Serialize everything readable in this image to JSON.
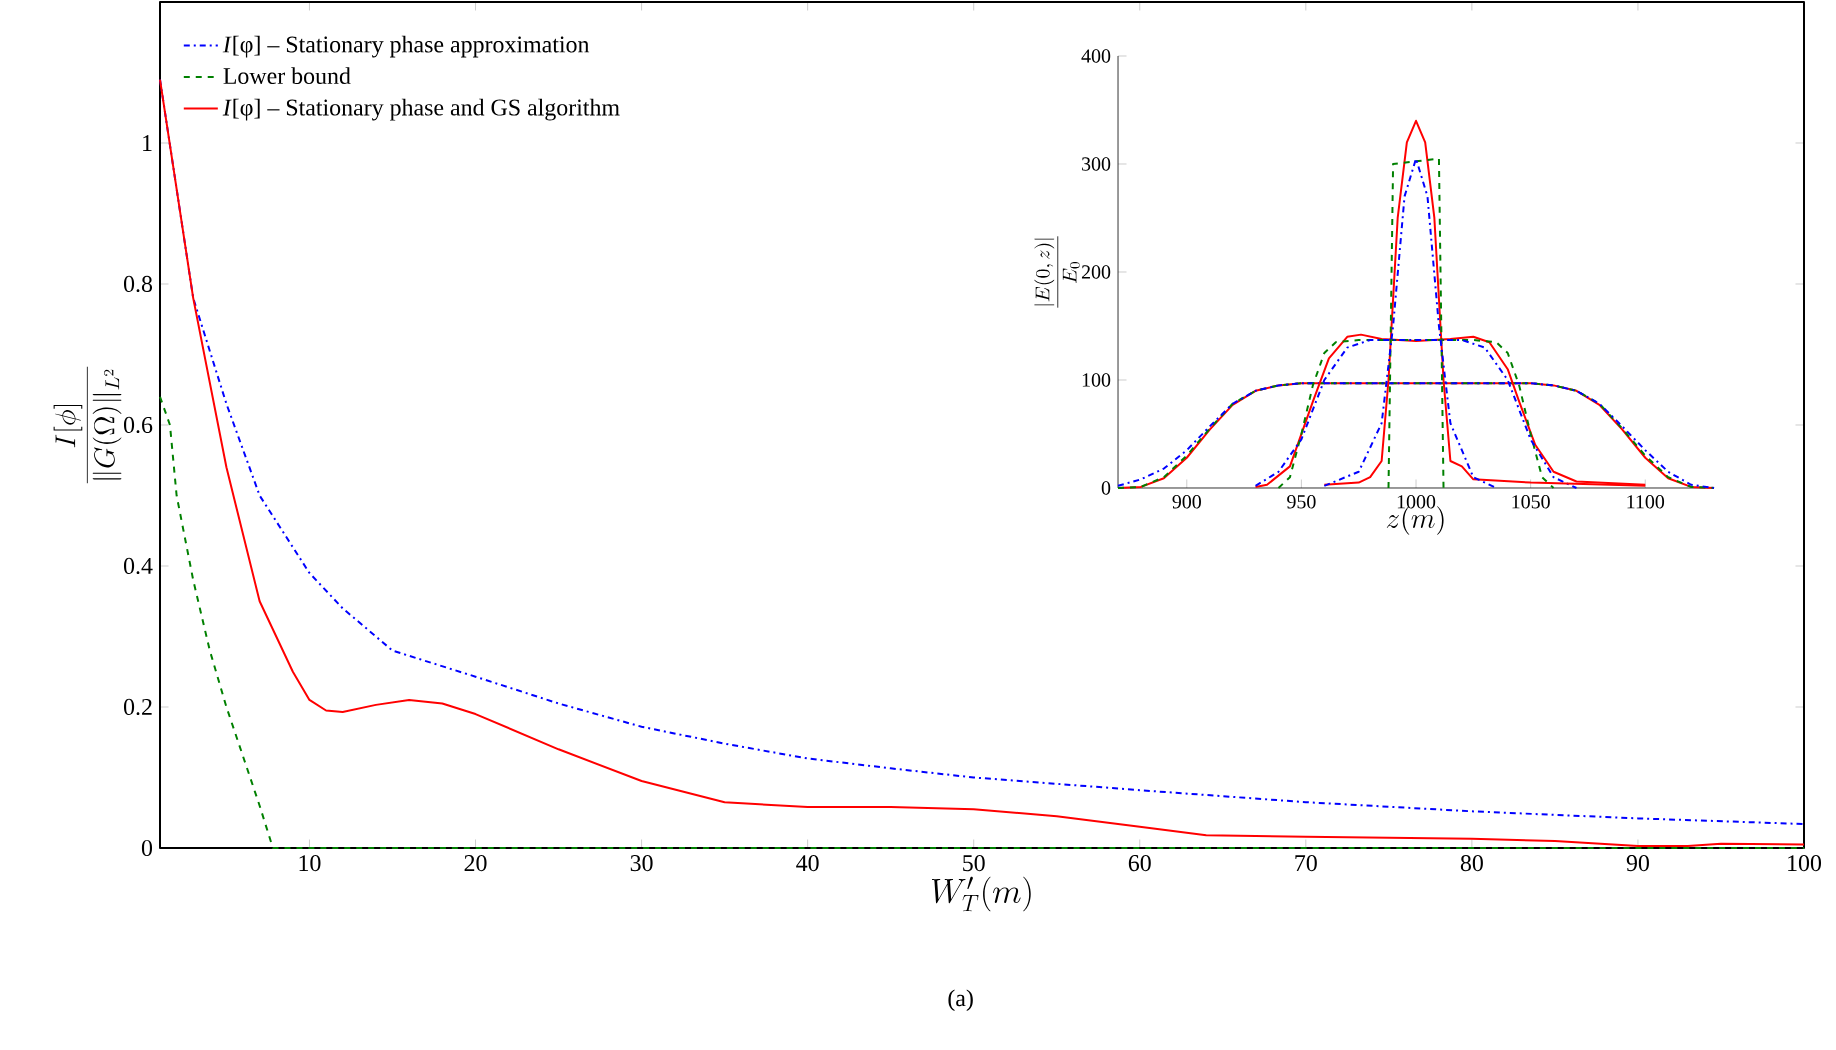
{
  "chart_data": [
    {
      "type": "line",
      "xlabel": "W'_T(m)",
      "ylabel": "\\frac{I[\\phi]}{\\|G(\\Omega)\\|_{L^2}}",
      "xlim": [
        1,
        100
      ],
      "ylim": [
        0,
        1.2
      ],
      "xticks": [
        10,
        20,
        30,
        40,
        50,
        60,
        70,
        80,
        90,
        100
      ],
      "yticks": [
        0,
        0.2,
        0.4,
        0.6,
        0.8,
        1
      ],
      "legend": "top left",
      "annotations": [
        "(a)"
      ],
      "series": [
        {
          "name": "*I*[φ] – Stationary phase approximation",
          "color": "#0000ff",
          "line_style": "dashdot",
          "x": [
            1,
            3,
            5,
            7,
            10,
            12,
            15,
            20,
            25,
            30,
            35,
            40,
            45,
            50,
            60,
            70,
            80,
            90,
            100
          ],
          "values": [
            1.09,
            0.78,
            0.63,
            0.5,
            0.39,
            0.34,
            0.28,
            0.243,
            0.205,
            0.172,
            0.148,
            0.127,
            0.113,
            0.1,
            0.082,
            0.065,
            0.052,
            0.042,
            0.034
          ]
        },
        {
          "name": "Lower bound",
          "color": "#008000",
          "line_style": "dashed",
          "x": [
            1,
            1.6,
            2,
            3,
            4,
            5,
            6,
            7,
            7.8,
            10,
            20,
            40,
            60,
            80,
            100
          ],
          "values": [
            0.64,
            0.6,
            0.5,
            0.38,
            0.28,
            0.2,
            0.13,
            0.06,
            0,
            0,
            0,
            0,
            0,
            0,
            0
          ]
        },
        {
          "name": "*I*[φ] – Stationary phase and GS algorithm",
          "color": "#ff0000",
          "line_style": "solid",
          "x": [
            1,
            3,
            5,
            7,
            9,
            10,
            11,
            12,
            14,
            16,
            18,
            20,
            25,
            30,
            35,
            40,
            45,
            50,
            55,
            60,
            64,
            70,
            80,
            85,
            90,
            93,
            95,
            100
          ],
          "values": [
            1.09,
            0.78,
            0.54,
            0.35,
            0.25,
            0.21,
            0.195,
            0.193,
            0.203,
            0.21,
            0.205,
            0.19,
            0.14,
            0.095,
            0.065,
            0.058,
            0.058,
            0.055,
            0.045,
            0.03,
            0.018,
            0.016,
            0.013,
            0.01,
            0.003,
            0.003,
            0.006,
            0.005
          ]
        }
      ]
    },
    {
      "type": "line",
      "xlabel": "z(m)",
      "ylabel": "\\frac{|E(0,z)|}{E_0}",
      "xlim": [
        870,
        1130
      ],
      "ylim": [
        0,
        400
      ],
      "xticks": [
        900,
        950,
        1000,
        1050,
        1100
      ],
      "yticks": [
        0,
        100,
        200,
        300,
        400
      ],
      "series": [
        {
          "color": "#ff0000",
          "line_style": "solid",
          "x": [
            870,
            880,
            890,
            900,
            910,
            920,
            930,
            940,
            950,
            1050,
            1060,
            1070,
            1080,
            1090,
            1100,
            1110,
            1120,
            1130
          ],
          "values": [
            0,
            1,
            9,
            28,
            54,
            77,
            90,
            95,
            97,
            97,
            95,
            90,
            77,
            54,
            28,
            9,
            1,
            0
          ]
        },
        {
          "color": "#008000",
          "line_style": "dashed",
          "x": [
            870,
            880,
            890,
            900,
            910,
            920,
            930,
            940,
            950,
            1050,
            1060,
            1070,
            1080,
            1090,
            1100,
            1110,
            1120,
            1130
          ],
          "values": [
            0,
            1,
            10,
            30,
            55,
            78,
            90,
            95,
            97,
            97,
            95,
            90,
            78,
            55,
            30,
            10,
            1,
            0
          ]
        },
        {
          "color": "#0000ff",
          "line_style": "dashdot",
          "x": [
            870,
            880,
            890,
            900,
            910,
            920,
            930,
            940,
            950,
            1050,
            1060,
            1070,
            1080,
            1090,
            1100,
            1110,
            1120,
            1130
          ],
          "values": [
            2,
            8,
            18,
            35,
            57,
            78,
            90,
            95,
            97,
            97,
            95,
            90,
            78,
            57,
            35,
            15,
            3,
            0
          ]
        },
        {
          "color": "#ff0000",
          "line_style": "solid",
          "x": [
            930,
            935,
            945,
            955,
            962,
            970,
            976,
            985,
            1000,
            1015,
            1025,
            1032,
            1040,
            1045,
            1052,
            1060,
            1070,
            1100
          ],
          "values": [
            1,
            3,
            20,
            80,
            120,
            140,
            142,
            138,
            136,
            138,
            140,
            135,
            110,
            80,
            40,
            15,
            6,
            3
          ]
        },
        {
          "color": "#008000",
          "line_style": "dashed",
          "x": [
            940,
            945,
            950,
            955,
            960,
            965,
            975,
            1025,
            1035,
            1040,
            1045,
            1050,
            1055,
            1060
          ],
          "values": [
            0,
            10,
            50,
            95,
            125,
            135,
            137,
            137,
            135,
            125,
            95,
            50,
            10,
            0
          ]
        },
        {
          "color": "#0000ff",
          "line_style": "dashdot",
          "x": [
            930,
            940,
            950,
            960,
            970,
            980,
            1020,
            1030,
            1040,
            1050,
            1060,
            1070
          ],
          "values": [
            2,
            15,
            45,
            100,
            130,
            137,
            137,
            130,
            100,
            45,
            10,
            0
          ]
        },
        {
          "color": "#ff0000",
          "line_style": "solid",
          "x": [
            960,
            975,
            980,
            985,
            988,
            992,
            996,
            1000,
            1004,
            1008,
            1012,
            1015,
            1020,
            1025,
            1050,
            1100
          ],
          "values": [
            3,
            5,
            10,
            25,
            100,
            250,
            320,
            340,
            320,
            250,
            100,
            25,
            20,
            8,
            5,
            2
          ]
        },
        {
          "color": "#008000",
          "line_style": "dashed",
          "x": [
            988,
            990,
            1010,
            1012
          ],
          "values": [
            0,
            300,
            305,
            0
          ]
        },
        {
          "color": "#0000ff",
          "line_style": "dashdot",
          "x": [
            960,
            975,
            985,
            990,
            995,
            1000,
            1005,
            1010,
            1015,
            1025,
            1035
          ],
          "values": [
            2,
            15,
            60,
            150,
            270,
            305,
            270,
            150,
            60,
            10,
            0
          ]
        }
      ]
    }
  ]
}
